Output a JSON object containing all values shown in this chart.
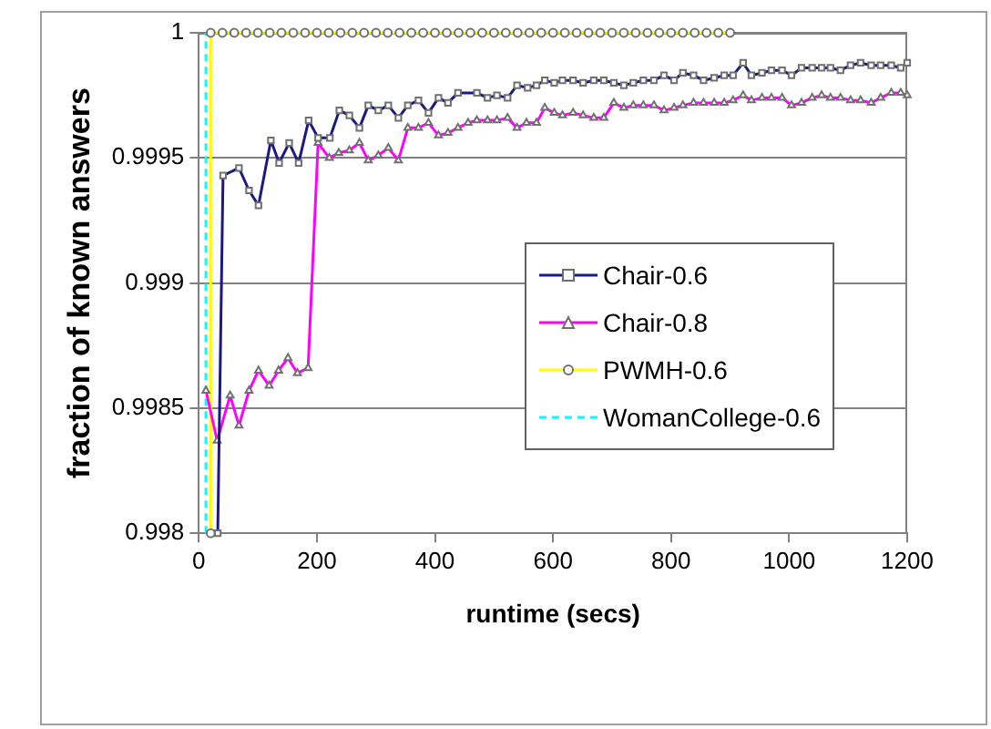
{
  "chart_data": {
    "type": "line",
    "xlabel": "runtime (secs)",
    "ylabel": "fraction of known answers",
    "xlim": [
      0,
      1200
    ],
    "xticks": [
      0,
      200,
      400,
      600,
      800,
      1000,
      1200
    ],
    "ylim": [
      0.998,
      1
    ],
    "yticks": [
      0.998,
      0.9985,
      0.999,
      0.9995,
      1
    ],
    "grid": "y",
    "legend": "right",
    "series": [
      {
        "name": "Chair-0.6",
        "color": "#1a1a80",
        "marker": "square",
        "line_style": "solid",
        "x": [
          32,
          41,
          68,
          85,
          101,
          122,
          136,
          153,
          169,
          186,
          202,
          222,
          238,
          255,
          272,
          287,
          304,
          321,
          338,
          354,
          372,
          389,
          406,
          422,
          439,
          471,
          489,
          505,
          523,
          539,
          557,
          572,
          586,
          602,
          616,
          634,
          651,
          669,
          686,
          703,
          720,
          736,
          753,
          771,
          788,
          805,
          820,
          838,
          855,
          873,
          890,
          905,
          922,
          936,
          954,
          970,
          988,
          1004,
          1021,
          1039,
          1055,
          1070,
          1087,
          1104,
          1121,
          1139,
          1155,
          1173,
          1189,
          1200
        ],
        "values": [
          0.998,
          0.99943,
          0.99946,
          0.99937,
          0.99931,
          0.99957,
          0.99948,
          0.99956,
          0.99948,
          0.99965,
          0.99958,
          0.99958,
          0.99969,
          0.99967,
          0.99962,
          0.99971,
          0.99969,
          0.99971,
          0.99966,
          0.99971,
          0.99973,
          0.99968,
          0.99974,
          0.99972,
          0.99976,
          0.99976,
          0.99974,
          0.99975,
          0.99974,
          0.99979,
          0.99978,
          0.99979,
          0.99981,
          0.9998,
          0.99981,
          0.99981,
          0.9998,
          0.99981,
          0.99981,
          0.9998,
          0.99979,
          0.9998,
          0.99981,
          0.99981,
          0.99983,
          0.99981,
          0.99984,
          0.99983,
          0.99981,
          0.99982,
          0.99983,
          0.99983,
          0.99988,
          0.99983,
          0.99984,
          0.99985,
          0.99985,
          0.99983,
          0.99986,
          0.99986,
          0.99986,
          0.99986,
          0.99985,
          0.99987,
          0.99988,
          0.99987,
          0.99987,
          0.99987,
          0.99986,
          0.99988
        ]
      },
      {
        "name": "Chair-0.8",
        "color": "#ff00ff",
        "marker": "triangle",
        "line_style": "solid",
        "x": [
          12,
          31,
          53,
          68,
          85,
          101,
          119,
          135,
          151,
          167,
          185,
          202,
          221,
          237,
          255,
          272,
          287,
          304,
          321,
          338,
          354,
          372,
          389,
          406,
          422,
          439,
          456,
          471,
          489,
          505,
          523,
          539,
          555,
          572,
          586,
          602,
          616,
          634,
          651,
          669,
          686,
          703,
          720,
          736,
          753,
          771,
          788,
          805,
          820,
          838,
          855,
          873,
          890,
          905,
          922,
          936,
          954,
          970,
          988,
          1004,
          1021,
          1039,
          1055,
          1070,
          1087,
          1104,
          1121,
          1139,
          1155,
          1173,
          1189,
          1200
        ],
        "values": [
          0.99857,
          0.99837,
          0.99855,
          0.99843,
          0.99857,
          0.99865,
          0.99859,
          0.99865,
          0.9987,
          0.99864,
          0.99866,
          0.99956,
          0.9995,
          0.99952,
          0.99953,
          0.99956,
          0.99949,
          0.99951,
          0.99954,
          0.99949,
          0.99962,
          0.99962,
          0.99964,
          0.99959,
          0.9996,
          0.99962,
          0.99964,
          0.99965,
          0.99965,
          0.99965,
          0.99966,
          0.99962,
          0.99964,
          0.99964,
          0.9997,
          0.99968,
          0.99967,
          0.99968,
          0.99967,
          0.99966,
          0.99966,
          0.99972,
          0.9997,
          0.99971,
          0.99971,
          0.99971,
          0.99969,
          0.9997,
          0.99971,
          0.99972,
          0.99972,
          0.99972,
          0.99972,
          0.99973,
          0.99975,
          0.99973,
          0.99974,
          0.99974,
          0.99974,
          0.99971,
          0.99972,
          0.99974,
          0.99975,
          0.99974,
          0.99974,
          0.99973,
          0.99973,
          0.99972,
          0.99974,
          0.99976,
          0.99976,
          0.99975
        ]
      },
      {
        "name": "PWMH-0.6",
        "color": "#ffff00",
        "marker": "circle",
        "line_style": "solid",
        "x": [
          20,
          20,
          40,
          60,
          80,
          100,
          120,
          140,
          160,
          180,
          200,
          220,
          240,
          260,
          280,
          300,
          320,
          340,
          360,
          380,
          400,
          420,
          440,
          460,
          480,
          500,
          520,
          540,
          560,
          580,
          600,
          620,
          640,
          660,
          680,
          700,
          720,
          740,
          760,
          780,
          800,
          820,
          840,
          860,
          880,
          900
        ],
        "values": [
          0.998,
          1,
          1,
          1,
          1,
          1,
          1,
          1,
          1,
          1,
          1,
          1,
          1,
          1,
          1,
          1,
          1,
          1,
          1,
          1,
          1,
          1,
          1,
          1,
          1,
          1,
          1,
          1,
          1,
          1,
          1,
          1,
          1,
          1,
          1,
          1,
          1,
          1,
          1,
          1,
          1,
          1,
          1,
          1,
          1,
          1
        ]
      },
      {
        "name": "WomanCollege-0.6",
        "color": "#00ffff",
        "marker": "none",
        "line_style": "dashed",
        "x": [
          12,
          12
        ],
        "values": [
          0.998,
          1
        ]
      }
    ]
  }
}
